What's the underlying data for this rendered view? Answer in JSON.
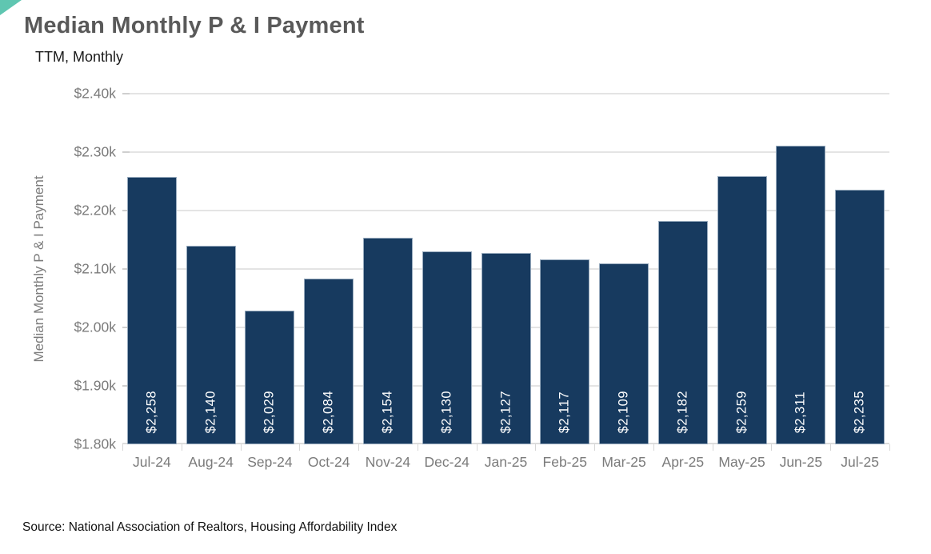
{
  "page": {
    "title": "Median Monthly P & I Payment",
    "subtitle": "TTM, Monthly",
    "source": "Source: National Association of Realtors, Housing Affordability Index"
  },
  "colors": {
    "bar_fill": "#173A5F",
    "corner_accent": "#5FC6B1",
    "gridline": "#E4E4E4",
    "axis_text": "#7B7B7B",
    "title_text": "#595959",
    "bar_label_text": "#FFFFFF"
  },
  "chart_data": {
    "type": "bar",
    "title": "Median Monthly P & I Payment",
    "subtitle": "TTM, Monthly",
    "categories": [
      "Jul-24",
      "Aug-24",
      "Sep-24",
      "Oct-24",
      "Nov-24",
      "Dec-24",
      "Jan-25",
      "Feb-25",
      "Mar-25",
      "Apr-25",
      "May-25",
      "Jun-25",
      "Jul-25"
    ],
    "values": [
      2258,
      2140,
      2029,
      2084,
      2154,
      2130,
      2127,
      2117,
      2109,
      2182,
      2259,
      2311,
      2235
    ],
    "bar_labels": [
      "$2,258",
      "$2,140",
      "$2,029",
      "$2,084",
      "$2,154",
      "$2,130",
      "$2,127",
      "$2,117",
      "$2,109",
      "$2,182",
      "$2,259",
      "$2,311",
      "$2,235"
    ],
    "xlabel": "",
    "ylabel": "Median Monthly P & I Payment",
    "ylim": [
      1800,
      2400
    ],
    "ytick_step": 100,
    "yticks": [
      1800,
      1900,
      2000,
      2100,
      2200,
      2300,
      2400
    ],
    "ytick_labels": [
      "$1.80k",
      "$1.90k",
      "$2.00k",
      "$2.10k",
      "$2.20k",
      "$2.30k",
      "$2.40k"
    ],
    "grid": true,
    "legend": false,
    "bar_label_position": "inside-bottom-rotated",
    "source": "Source: National Association of Realtors, Housing Affordability Index"
  }
}
